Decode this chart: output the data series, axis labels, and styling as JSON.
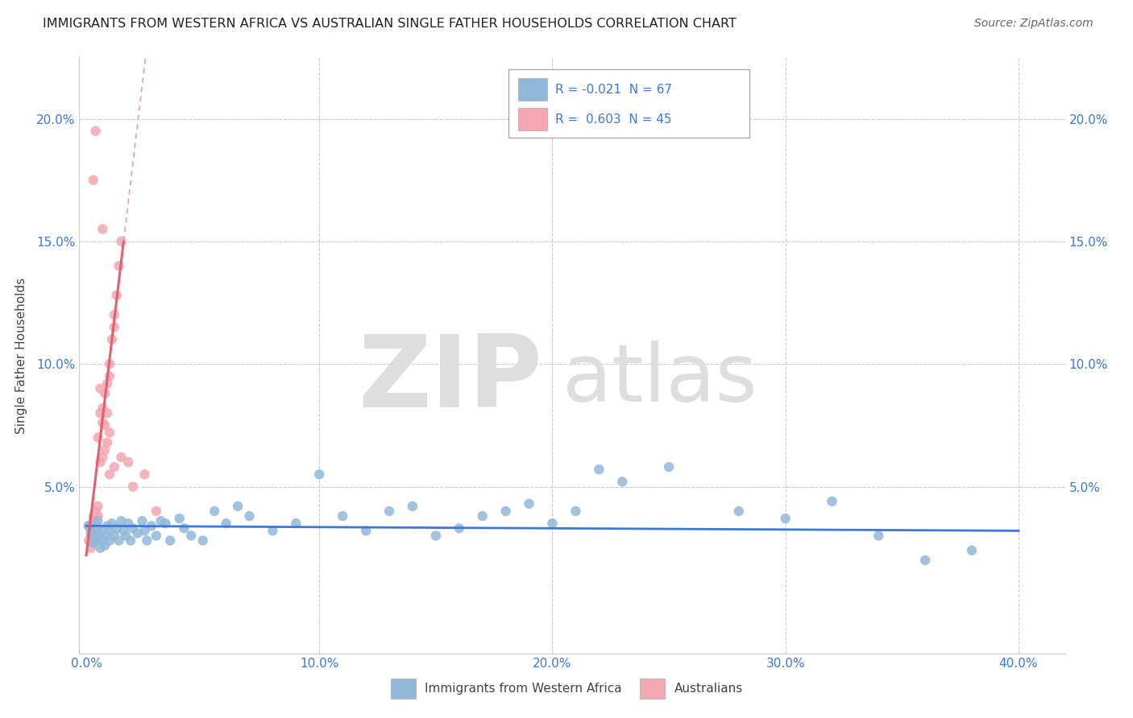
{
  "title": "IMMIGRANTS FROM WESTERN AFRICA VS AUSTRALIAN SINGLE FATHER HOUSEHOLDS CORRELATION CHART",
  "source": "Source: ZipAtlas.com",
  "ylabel": "Single Father Households",
  "xlim": [
    -0.003,
    0.42
  ],
  "ylim": [
    -0.018,
    0.225
  ],
  "xticks": [
    0.0,
    0.1,
    0.2,
    0.3,
    0.4
  ],
  "xtick_labels": [
    "0.0%",
    "10.0%",
    "20.0%",
    "30.0%",
    "40.0%"
  ],
  "yticks": [
    0.0,
    0.05,
    0.1,
    0.15,
    0.2
  ],
  "ytick_labels": [
    "",
    "5.0%",
    "10.0%",
    "15.0%",
    "20.0%"
  ],
  "background_color": "#ffffff",
  "grid_color": "#cccccc",
  "blue_color": "#92b8d9",
  "pink_color": "#f4a7b0",
  "blue_line_color": "#3c78d8",
  "pink_line_color": "#e06070",
  "pink_dash_color": "#e8a0a8",
  "watermark_zip": "ZIP",
  "watermark_atlas": "atlas",
  "watermark_color": "#dedede",
  "blue_R": -0.021,
  "blue_N": 67,
  "pink_R": 0.603,
  "pink_N": 45,
  "blue_points": [
    [
      0.001,
      0.034
    ],
    [
      0.002,
      0.031
    ],
    [
      0.003,
      0.029
    ],
    [
      0.003,
      0.027
    ],
    [
      0.004,
      0.033
    ],
    [
      0.004,
      0.028
    ],
    [
      0.005,
      0.036
    ],
    [
      0.005,
      0.031
    ],
    [
      0.006,
      0.03
    ],
    [
      0.006,
      0.025
    ],
    [
      0.007,
      0.032
    ],
    [
      0.007,
      0.028
    ],
    [
      0.008,
      0.026
    ],
    [
      0.009,
      0.034
    ],
    [
      0.009,
      0.03
    ],
    [
      0.01,
      0.032
    ],
    [
      0.01,
      0.028
    ],
    [
      0.011,
      0.035
    ],
    [
      0.012,
      0.03
    ],
    [
      0.013,
      0.033
    ],
    [
      0.014,
      0.028
    ],
    [
      0.015,
      0.036
    ],
    [
      0.016,
      0.032
    ],
    [
      0.017,
      0.03
    ],
    [
      0.018,
      0.035
    ],
    [
      0.019,
      0.028
    ],
    [
      0.02,
      0.033
    ],
    [
      0.022,
      0.031
    ],
    [
      0.024,
      0.036
    ],
    [
      0.025,
      0.032
    ],
    [
      0.026,
      0.028
    ],
    [
      0.028,
      0.034
    ],
    [
      0.03,
      0.03
    ],
    [
      0.032,
      0.036
    ],
    [
      0.034,
      0.035
    ],
    [
      0.036,
      0.028
    ],
    [
      0.04,
      0.037
    ],
    [
      0.042,
      0.033
    ],
    [
      0.045,
      0.03
    ],
    [
      0.05,
      0.028
    ],
    [
      0.055,
      0.04
    ],
    [
      0.06,
      0.035
    ],
    [
      0.065,
      0.042
    ],
    [
      0.07,
      0.038
    ],
    [
      0.08,
      0.032
    ],
    [
      0.09,
      0.035
    ],
    [
      0.1,
      0.055
    ],
    [
      0.11,
      0.038
    ],
    [
      0.12,
      0.032
    ],
    [
      0.13,
      0.04
    ],
    [
      0.14,
      0.042
    ],
    [
      0.15,
      0.03
    ],
    [
      0.16,
      0.033
    ],
    [
      0.17,
      0.038
    ],
    [
      0.18,
      0.04
    ],
    [
      0.19,
      0.043
    ],
    [
      0.2,
      0.035
    ],
    [
      0.21,
      0.04
    ],
    [
      0.22,
      0.057
    ],
    [
      0.23,
      0.052
    ],
    [
      0.25,
      0.058
    ],
    [
      0.28,
      0.04
    ],
    [
      0.3,
      0.037
    ],
    [
      0.32,
      0.044
    ],
    [
      0.34,
      0.03
    ],
    [
      0.36,
      0.02
    ],
    [
      0.38,
      0.024
    ]
  ],
  "pink_points": [
    [
      0.001,
      0.034
    ],
    [
      0.001,
      0.028
    ],
    [
      0.002,
      0.032
    ],
    [
      0.002,
      0.025
    ],
    [
      0.002,
      0.03
    ],
    [
      0.003,
      0.036
    ],
    [
      0.003,
      0.038
    ],
    [
      0.003,
      0.03
    ],
    [
      0.004,
      0.04
    ],
    [
      0.004,
      0.035
    ],
    [
      0.004,
      0.028
    ],
    [
      0.005,
      0.042
    ],
    [
      0.005,
      0.038
    ],
    [
      0.005,
      0.07
    ],
    [
      0.006,
      0.08
    ],
    [
      0.006,
      0.09
    ],
    [
      0.007,
      0.076
    ],
    [
      0.007,
      0.082
    ],
    [
      0.008,
      0.088
    ],
    [
      0.008,
      0.075
    ],
    [
      0.009,
      0.092
    ],
    [
      0.009,
      0.08
    ],
    [
      0.01,
      0.1
    ],
    [
      0.01,
      0.095
    ],
    [
      0.011,
      0.11
    ],
    [
      0.012,
      0.115
    ],
    [
      0.012,
      0.12
    ],
    [
      0.013,
      0.128
    ],
    [
      0.014,
      0.14
    ],
    [
      0.015,
      0.15
    ],
    [
      0.006,
      0.06
    ],
    [
      0.007,
      0.062
    ],
    [
      0.008,
      0.065
    ],
    [
      0.009,
      0.068
    ],
    [
      0.01,
      0.072
    ],
    [
      0.01,
      0.055
    ],
    [
      0.012,
      0.058
    ],
    [
      0.015,
      0.062
    ],
    [
      0.018,
      0.06
    ],
    [
      0.02,
      0.05
    ],
    [
      0.025,
      0.055
    ],
    [
      0.03,
      0.04
    ],
    [
      0.003,
      0.175
    ],
    [
      0.004,
      0.195
    ],
    [
      0.007,
      0.155
    ]
  ],
  "blue_line_x": [
    0.0,
    0.4
  ],
  "blue_line_intercept": 0.034,
  "blue_line_slope": -0.005,
  "pink_line_solid_x0": 0.0,
  "pink_line_solid_x1": 0.016,
  "pink_line_dash_x1": 0.038,
  "pink_line_intercept": 0.022,
  "pink_line_slope": 8.0
}
